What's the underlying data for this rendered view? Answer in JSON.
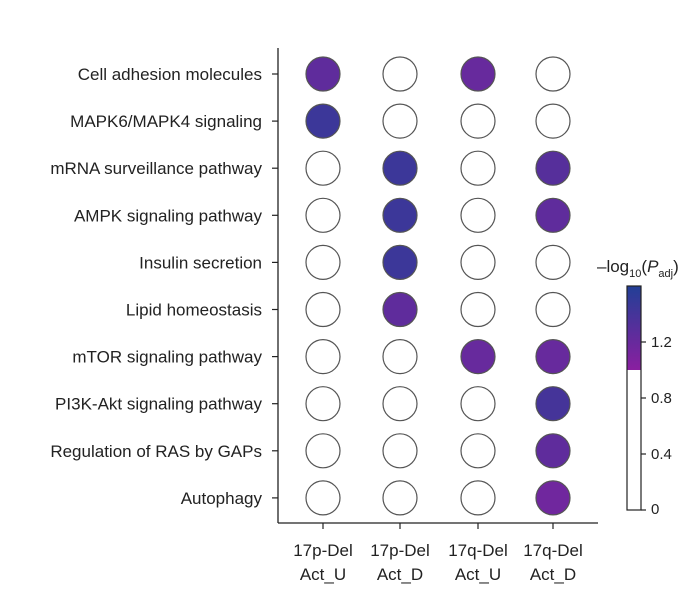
{
  "chart_data": {
    "type": "heatmap",
    "rows": [
      "Cell adhesion molecules",
      "MAPK6/MAPK4 signaling",
      "mRNA surveillance pathway",
      "AMPK signaling pathway",
      "Insulin secretion",
      "Lipid homeostasis",
      "mTOR signaling pathway",
      "PI3K-Akt signaling pathway",
      "Regulation of RAS by GAPs",
      "Autophagy"
    ],
    "columns": [
      {
        "line1": "17p-Del",
        "line2": "Act_U"
      },
      {
        "line1": "17p-Del",
        "line2": "Act_D"
      },
      {
        "line1": "17q-Del",
        "line2": "Act_U"
      },
      {
        "line1": "17q-Del",
        "line2": "Act_D"
      }
    ],
    "values": [
      [
        1.25,
        0,
        1.2,
        0
      ],
      [
        1.45,
        0,
        0,
        0
      ],
      [
        0,
        1.45,
        0,
        1.3
      ],
      [
        0,
        1.45,
        0,
        1.25
      ],
      [
        0,
        1.45,
        0,
        0
      ],
      [
        0,
        1.25,
        0,
        0
      ],
      [
        0,
        0,
        1.2,
        1.2
      ],
      [
        0,
        0,
        0,
        1.4
      ],
      [
        0,
        0,
        0,
        1.25
      ],
      [
        0,
        0,
        0,
        1.15
      ]
    ],
    "colorbar": {
      "title_prefix": "–log",
      "title_sub": "10",
      "title_open": "(",
      "title_var": "P",
      "title_var_sub": "adj",
      "title_close": ")",
      "ticks": [
        0,
        0.4,
        0.8,
        1.2
      ],
      "tick_labels": [
        "0",
        "0.4",
        "0.8",
        "1.2"
      ],
      "range": [
        0,
        1.6
      ],
      "threshold": 1.0,
      "low_color": "#ffffff",
      "threshold_color": "#8a1fa0",
      "high_color": "#223f96"
    },
    "colors": {
      "circle_stroke": "#555555",
      "axis": "#222222"
    }
  }
}
